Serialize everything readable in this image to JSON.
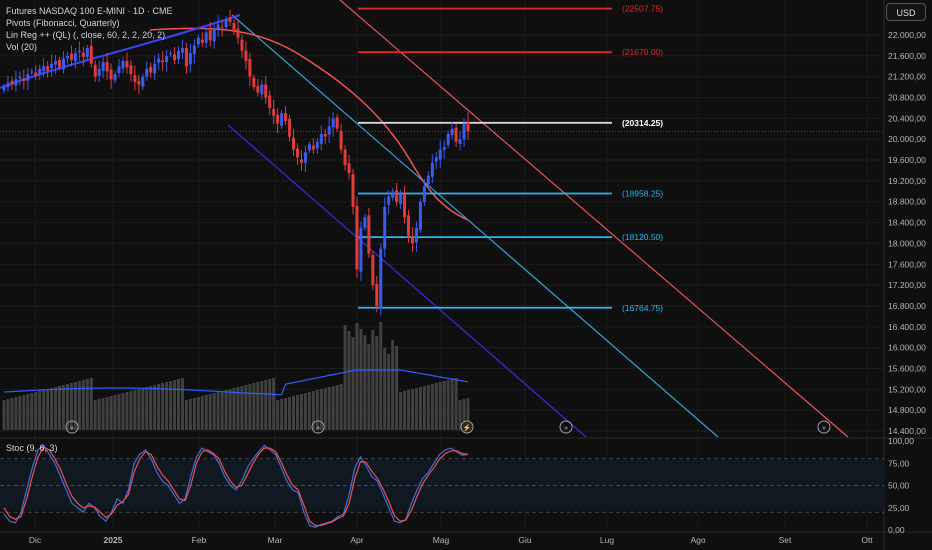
{
  "header": {
    "symbol": "Futures NASDAQ 100 E-MINI · 1D · CME",
    "indicators": [
      "Pivots (Fibonacci, Quarterly)",
      "Lin Reg ++ (QL) (, close, 60, 2, 2, 20, 2)",
      "Vol (20)"
    ],
    "currency_button": "USD"
  },
  "colors": {
    "background": "#0f0f0f",
    "up_candle": "#3a5bf0",
    "down_candle": "#e23b3b",
    "pivot_red": "#e02828",
    "pivot_white": "#d8d8d8",
    "pivot_cyan": "#29b6f6",
    "channel_red": "#f15555",
    "channel_cyan": "#2aa7d6",
    "channel_blue": "#3a2be0",
    "stoc_k": "#3d6fe0",
    "stoc_d": "#f05050"
  },
  "chart_data": [
    {
      "type": "candlestick",
      "title": "Futures NASDAQ 100 E-MINI · 1D · CME",
      "y_axis_ticks": [
        "22.000,00",
        "21.600,00",
        "21.200,00",
        "20.800,00",
        "20.400,00",
        "20.000,00",
        "19.600,00",
        "19.200,00",
        "18.800,00",
        "18.400,00",
        "18.000,00",
        "17.600,00",
        "17.200,00",
        "16.800,00",
        "16.400,00",
        "16.000,00",
        "15.600,00",
        "15.200,00",
        "14.800,00",
        "14.400,00"
      ],
      "x_axis_ticks": [
        "Dic",
        "2025",
        "Feb",
        "Mar",
        "Apr",
        "Mag",
        "Giu",
        "Lug",
        "Ago",
        "Set",
        "Ott"
      ],
      "ylim": [
        14300,
        22400
      ],
      "pivot_levels": [
        {
          "label": "(22507.75)",
          "value": 22507.75,
          "color": "red"
        },
        {
          "label": "(21670.00)",
          "value": 21670.0,
          "color": "red"
        },
        {
          "label": "(20314.25)",
          "value": 20314.25,
          "color": "white"
        },
        {
          "label": "(18958.25)",
          "value": 18958.25,
          "color": "cyan"
        },
        {
          "label": "(18120.50)",
          "value": 18120.5,
          "color": "cyan"
        },
        {
          "label": "(16764.75)",
          "value": 16764.75,
          "color": "cyan"
        }
      ],
      "last_price": 20150,
      "closes": [
        21000,
        21080,
        21050,
        21150,
        21200,
        21120,
        21250,
        21300,
        21220,
        21350,
        21400,
        21320,
        21450,
        21500,
        21380,
        21550,
        21600,
        21520,
        21650,
        21700,
        21580,
        21750,
        21450,
        21200,
        21350,
        21480,
        21300,
        21150,
        21250,
        21400,
        21500,
        21380,
        21250,
        21100,
        21050,
        21200,
        21350,
        21280,
        21450,
        21550,
        21480,
        21600,
        21650,
        21520,
        21700,
        21750,
        21400,
        21650,
        21800,
        21950,
        21850,
        22050,
        21900,
        22100,
        22200,
        22150,
        22300,
        22250,
        22100,
        21950,
        21700,
        21500,
        21200,
        21000,
        20900,
        21050,
        20800,
        20600,
        20450,
        20300,
        20500,
        20350,
        20050,
        19800,
        19650,
        19550,
        19750,
        19900,
        19800,
        19950,
        20100,
        20050,
        20250,
        20400,
        20200,
        19800,
        19500,
        19350,
        18700,
        17500,
        18300,
        18500,
        17800,
        17200,
        16800,
        17900,
        18700,
        18900,
        19000,
        18800,
        18950,
        18500,
        18150,
        18000,
        18300,
        18800,
        19100,
        19300,
        19550,
        19650,
        19800,
        19850,
        20100,
        20200,
        19950,
        20000,
        20300,
        20150
      ],
      "volume_ma_note": "Vol (20)"
    },
    {
      "type": "line",
      "title": "Stoc (9, 6, 3)",
      "y_axis_ticks": [
        "100,00",
        "75,00",
        "50,00",
        "25,00",
        "0,00"
      ],
      "ylim": [
        0,
        100
      ],
      "bands": [
        80,
        50,
        20
      ],
      "series": [
        {
          "name": "%K",
          "values": [
            18,
            10,
            8,
            20,
            45,
            70,
            90,
            95,
            85,
            75,
            60,
            45,
            30,
            25,
            20,
            30,
            25,
            15,
            10,
            20,
            35,
            30,
            45,
            75,
            85,
            90,
            80,
            65,
            55,
            50,
            40,
            30,
            35,
            60,
            82,
            92,
            88,
            85,
            75,
            60,
            50,
            45,
            55,
            70,
            80,
            88,
            95,
            90,
            85,
            70,
            55,
            45,
            42,
            20,
            5,
            3,
            6,
            8,
            10,
            15,
            18,
            40,
            70,
            82,
            72,
            60,
            55,
            40,
            25,
            10,
            8,
            12,
            30,
            45,
            58,
            65,
            75,
            85,
            90,
            92,
            88,
            84,
            85
          ]
        },
        {
          "name": "%D",
          "values": [
            25,
            15,
            12,
            15,
            35,
            60,
            82,
            93,
            90,
            80,
            68,
            52,
            38,
            30,
            25,
            27,
            26,
            20,
            14,
            18,
            28,
            32,
            40,
            65,
            80,
            88,
            85,
            72,
            62,
            55,
            45,
            35,
            33,
            50,
            75,
            88,
            90,
            86,
            80,
            66,
            55,
            48,
            50,
            62,
            75,
            85,
            92,
            92,
            88,
            76,
            62,
            50,
            45,
            28,
            10,
            5,
            5,
            7,
            9,
            13,
            16,
            30,
            58,
            77,
            76,
            66,
            58,
            46,
            32,
            16,
            10,
            11,
            22,
            38,
            52,
            62,
            70,
            80,
            86,
            89,
            89,
            86,
            85
          ]
        }
      ]
    }
  ],
  "stoc_label": "Stoc (9, 6, 3)"
}
